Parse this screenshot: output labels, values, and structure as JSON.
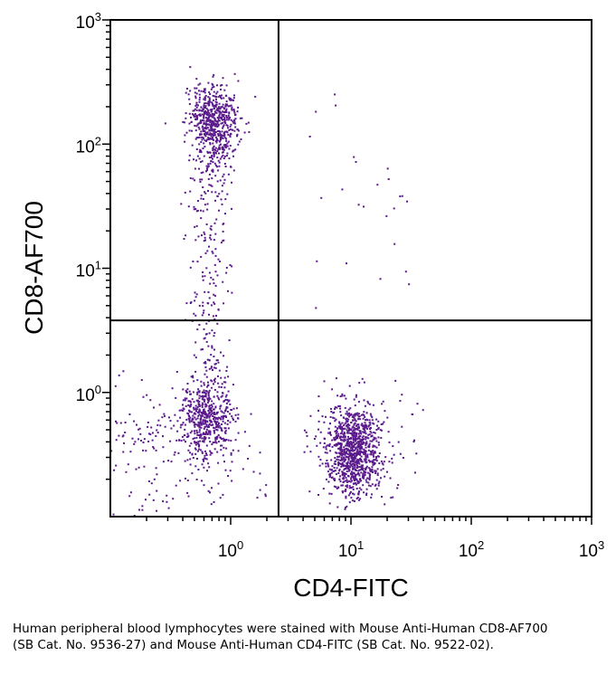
{
  "chart_data": {
    "type": "scatter",
    "x_scale": "log",
    "y_scale": "log",
    "xlabel": "CD4-FITC",
    "ylabel": "CD8-AF700",
    "x_lim_log": [
      -1,
      3
    ],
    "y_lim_log": [
      -1,
      3
    ],
    "x_ticks": [
      {
        "base": "10",
        "exp": "0",
        "v": 0
      },
      {
        "base": "10",
        "exp": "1",
        "v": 1
      },
      {
        "base": "10",
        "exp": "2",
        "v": 2
      },
      {
        "base": "10",
        "exp": "3",
        "v": 3
      }
    ],
    "y_ticks": [
      {
        "base": "10",
        "exp": "0",
        "v": 0
      },
      {
        "base": "10",
        "exp": "1",
        "v": 1
      },
      {
        "base": "10",
        "exp": "2",
        "v": 2
      },
      {
        "base": "10",
        "exp": "3",
        "v": 3
      }
    ],
    "quadrant_gates": {
      "x": 2.5,
      "y": 3.8
    },
    "point_color": "#5a1a8c",
    "populations": [
      {
        "name": "CD8+ CD4-",
        "center": [
          0.7,
          160
        ],
        "approx_events": 600
      },
      {
        "name": "CD8- CD4- (double negative)",
        "center": [
          0.65,
          0.6
        ],
        "approx_events": 650
      },
      {
        "name": "CD4+ CD8-",
        "center": [
          10.5,
          0.35
        ],
        "approx_events": 1000
      },
      {
        "name": "CD8 intermediate bridge",
        "center": [
          0.7,
          8
        ],
        "approx_events": 280
      },
      {
        "name": "background events",
        "approx_events": 200
      }
    ]
  },
  "caption": "Human peripheral blood lymphocytes were stained with Mouse Anti-Human CD8-AF700 (SB Cat. No. 9536-27) and Mouse Anti-Human CD4-FITC (SB Cat. No. 9522-02)."
}
